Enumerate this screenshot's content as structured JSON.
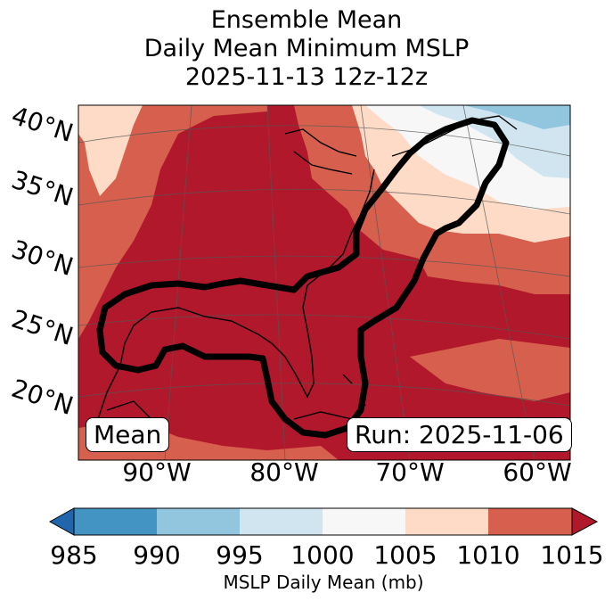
{
  "title": {
    "line1": "Ensemble Mean",
    "line2": "Daily Mean Minimum MSLP",
    "line3": "2025-11-13 12z-12z"
  },
  "map": {
    "lat_labels": [
      "40°N",
      "35°N",
      "30°N",
      "25°N",
      "20°N"
    ],
    "lon_labels": [
      "90°W",
      "80°W",
      "70°W",
      "60°W"
    ],
    "box_left": "Mean",
    "box_right": "Run: 2025-11-06"
  },
  "colorbar": {
    "ticks": [
      "985",
      "990",
      "995",
      "1000",
      "1005",
      "1010",
      "1015"
    ],
    "label": "MSLP Daily Mean (mb)",
    "colors": [
      "#2166ac",
      "#4393c3",
      "#92c5de",
      "#d1e5f0",
      "#f7f7f7",
      "#fddbc7",
      "#d6604d",
      "#b2182b"
    ]
  }
}
